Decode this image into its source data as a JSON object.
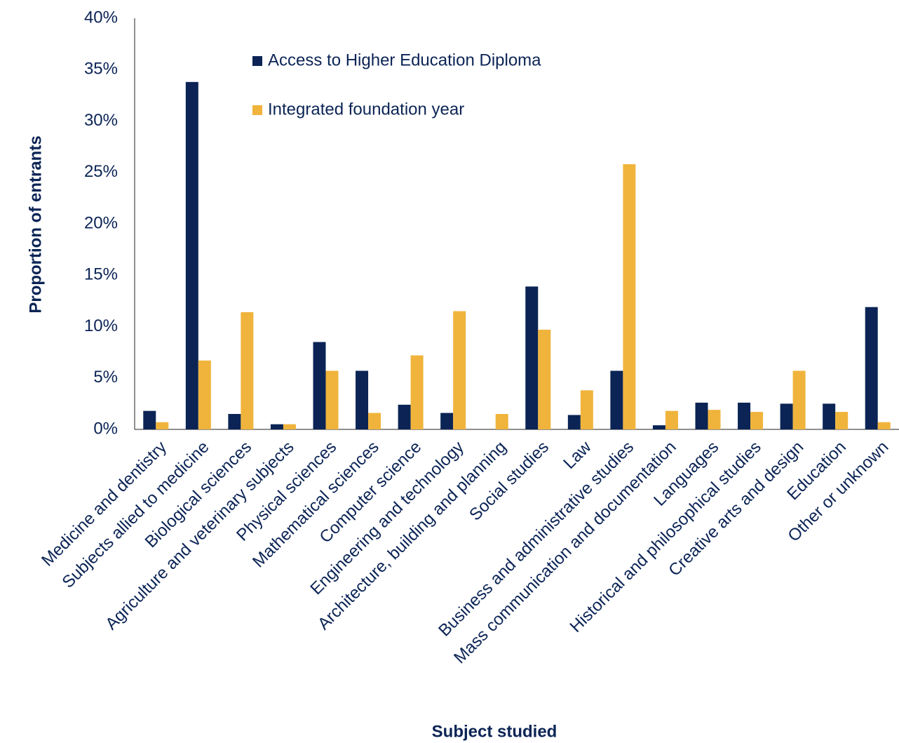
{
  "chart_data": {
    "type": "bar",
    "x_label": "Subject studied",
    "y_label": "Proportion of entrants",
    "categories": [
      "Medicine and dentistry",
      "Subjects allied to medicine",
      "Biological sciences",
      "Agriculture and veterinary subjects",
      "Physical sciences",
      "Mathematical sciences",
      "Computer science",
      "Engineering and technology",
      "Architecture, building and planning",
      "Social studies",
      "Law",
      "Business and administrative studies",
      "Mass communication and documentation",
      "Languages",
      "Historical and philosophical studies",
      "Creative arts and design",
      "Education",
      "Other or unknown"
    ],
    "series": [
      {
        "name": "Access to Higher Education Diploma",
        "color": "#0b2455",
        "values": [
          1.8,
          33.8,
          1.5,
          0.5,
          8.5,
          5.7,
          2.4,
          1.6,
          0,
          13.9,
          1.4,
          5.7,
          0.4,
          2.6,
          2.6,
          2.5,
          2.5,
          11.9
        ]
      },
      {
        "name": "Integrated foundation year",
        "color": "#f0b43c",
        "values": [
          0.7,
          6.7,
          11.4,
          0.5,
          5.7,
          1.6,
          7.2,
          11.5,
          1.5,
          9.7,
          3.8,
          25.8,
          1.8,
          1.9,
          1.7,
          5.7,
          1.7,
          0.7
        ]
      }
    ],
    "ylim": [
      0,
      40
    ],
    "yticks": [
      {
        "value": 0,
        "label": "0%"
      },
      {
        "value": 5,
        "label": "5%"
      },
      {
        "value": 10,
        "label": "10%"
      },
      {
        "value": 15,
        "label": "15%"
      },
      {
        "value": 20,
        "label": "20%"
      },
      {
        "value": 25,
        "label": "25%"
      },
      {
        "value": 30,
        "label": "30%"
      },
      {
        "value": 35,
        "label": "35%"
      },
      {
        "value": 40,
        "label": "40%"
      }
    ],
    "grid": false,
    "legend": "top"
  }
}
